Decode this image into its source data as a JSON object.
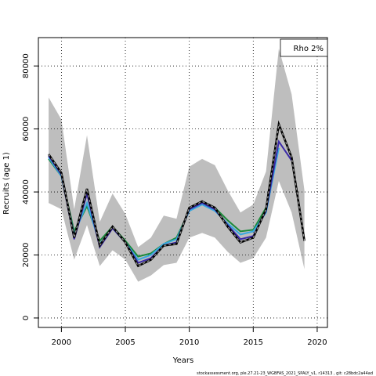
{
  "chart_data": {
    "type": "line",
    "xlabel": "Years",
    "ylabel": "Recruits (age 1)",
    "xlim": [
      1998.2,
      2020.8
    ],
    "ylim": [
      -3000,
      89000
    ],
    "x_ticks": [
      2000,
      2005,
      2010,
      2015,
      2020
    ],
    "y_ticks": [
      0,
      20000,
      40000,
      60000,
      80000
    ],
    "x_tick_labels": [
      "2000",
      "2005",
      "2010",
      "2015",
      "2020"
    ],
    "y_tick_labels": [
      "0",
      "20000",
      "40000",
      "60000",
      "80000"
    ],
    "grid": true,
    "legend": {
      "text": "Rho 2%",
      "placement": "top-right"
    },
    "footer": "stockassessment.org, ple.27.21-23_WGBFAS_2021_SPALY_v1, r14313 , git: c28bdc2a44ad",
    "colors": {
      "band": "#bebebe",
      "baseline": "#000000",
      "retro1": "#3b2aa8",
      "retro2": "#36a8e0",
      "retro3": "#1b8a3a",
      "grid": "#000000"
    },
    "band": {
      "x": [
        1999,
        2000,
        2001,
        2002,
        2003,
        2004,
        2005,
        2006,
        2007,
        2008,
        2009,
        2010,
        2011,
        2012,
        2013,
        2014,
        2015,
        2016,
        2017,
        2018,
        2019
      ],
      "lower": [
        36500,
        34500,
        18500,
        29500,
        16500,
        21500,
        18500,
        11500,
        13500,
        16800,
        17500,
        25500,
        27000,
        25500,
        21000,
        17500,
        19000,
        25500,
        43500,
        33500,
        15500
      ],
      "upper": [
        70000,
        63000,
        34500,
        58000,
        30500,
        39500,
        33000,
        22500,
        25500,
        32500,
        31500,
        48000,
        50500,
        48500,
        40500,
        33500,
        36000,
        46500,
        85500,
        71000,
        40500
      ]
    },
    "series": [
      {
        "color_key": "baseline",
        "style": "dashed",
        "x": [
          1999,
          2000,
          2001,
          2002,
          2003,
          2004,
          2005,
          2006,
          2007,
          2008,
          2009,
          2010,
          2011,
          2012,
          2013,
          2014,
          2015,
          2016,
          2017,
          2018,
          2019
        ],
        "values": [
          52000,
          46000,
          25500,
          41000,
          23000,
          29000,
          24000,
          16500,
          18500,
          23000,
          23500,
          35000,
          37000,
          35000,
          29000,
          24000,
          25500,
          34500,
          61500,
          51000,
          24500
        ]
      },
      {
        "color_key": "retro1",
        "style": "solid",
        "x": [
          1999,
          2000,
          2001,
          2002,
          2003,
          2004,
          2005,
          2006,
          2007,
          2008,
          2009,
          2010,
          2011,
          2012,
          2013,
          2014,
          2015,
          2016,
          2017,
          2018
        ],
        "values": [
          51500,
          45500,
          25000,
          39500,
          22500,
          28500,
          24000,
          17500,
          19000,
          23000,
          24000,
          34500,
          36500,
          34500,
          29500,
          25000,
          26000,
          34000,
          56000,
          50000
        ]
      },
      {
        "color_key": "retro2",
        "style": "solid",
        "x": [
          1999,
          2000,
          2001,
          2002,
          2003,
          2004,
          2005,
          2006,
          2007,
          2008,
          2009,
          2010,
          2011,
          2012,
          2013,
          2014,
          2015,
          2016,
          2017
        ],
        "values": [
          51000,
          45000,
          26500,
          36500,
          23500,
          28500,
          24000,
          18500,
          20000,
          23500,
          25000,
          34000,
          36000,
          34000,
          30000,
          26500,
          27500,
          33500,
          54000
        ]
      },
      {
        "color_key": "retro3",
        "style": "solid",
        "x": [
          1999,
          2000,
          2001,
          2002,
          2003,
          2004,
          2005,
          2006,
          2007,
          2008,
          2009,
          2010,
          2011,
          2012,
          2013,
          2014,
          2015,
          2016
        ],
        "values": [
          50500,
          45000,
          27500,
          35500,
          24500,
          29000,
          24500,
          19500,
          20500,
          23500,
          25500,
          34000,
          36500,
          35000,
          31000,
          27500,
          28000,
          35000
        ]
      }
    ]
  }
}
